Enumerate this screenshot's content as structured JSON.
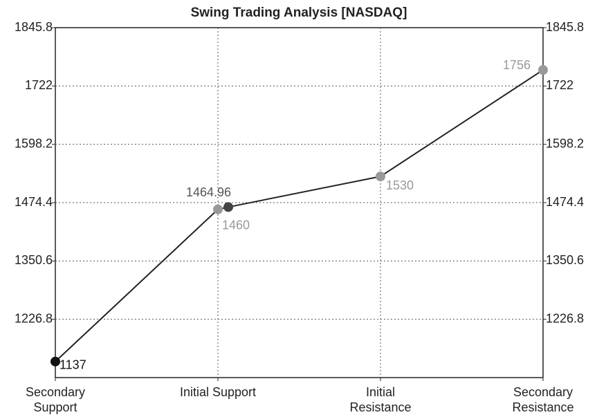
{
  "chart_data": {
    "type": "line",
    "title": "Swing Trading Analysis [NASDAQ]",
    "x": [
      0,
      1,
      1.064,
      2,
      3
    ],
    "xlim": [
      0,
      3
    ],
    "xticks": [
      {
        "value": 0,
        "label": "Secondary Support"
      },
      {
        "value": 1,
        "label": "Initial Support"
      },
      {
        "value": 2,
        "label": "Initial Resistance"
      },
      {
        "value": 3,
        "label": "Secondary Resistance"
      }
    ],
    "series": [
      {
        "values": [
          1137,
          1460,
          1464.96,
          1530,
          1756
        ],
        "color": "#222222",
        "point_colors": [
          "#111111",
          "#999999",
          "#444444",
          "#999999",
          "#999999"
        ],
        "label_colors": [
          "#111111",
          "#999999",
          "#555555",
          "#999999",
          "#999999"
        ]
      }
    ],
    "ylim": [
      1103,
      1845.8
    ],
    "yticks": [
      1226.8,
      1350.6,
      1474.4,
      1598.2,
      1722,
      1845.8
    ],
    "y2lim": [
      1103,
      1845.8
    ],
    "y2ticks": [
      1226.8,
      1350.6,
      1474.4,
      1598.2,
      1722,
      1845.8
    ],
    "grid": true
  }
}
